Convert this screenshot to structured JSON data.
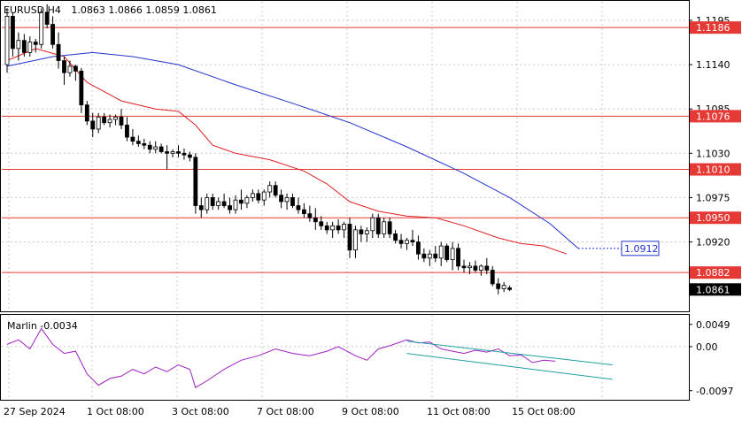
{
  "header": {
    "symbol": "EURUSD,H4",
    "ohlc": "1.0863 1.0866 1.0859 1.0861"
  },
  "indicator": {
    "label": "Marlin -0.0034",
    "ticks": [
      {
        "value": 0.0049,
        "label": "0.0049"
      },
      {
        "value": 0.0,
        "label": "0.00"
      },
      {
        "value": -0.0097,
        "label": "-0.0097"
      }
    ],
    "ylim": [
      -0.0115,
      0.0068
    ]
  },
  "chart_data": {
    "type": "candlestick",
    "ylim": [
      1.0835,
      1.1218
    ],
    "grid": true,
    "price_ticks": [
      {
        "value": 1.1195,
        "label": "1.1195"
      },
      {
        "value": 1.114,
        "label": "1.1140"
      },
      {
        "value": 1.1085,
        "label": "1.1085"
      },
      {
        "value": 1.103,
        "label": "1.1030"
      },
      {
        "value": 1.0975,
        "label": "1.0975"
      },
      {
        "value": 1.092,
        "label": "1.0920"
      }
    ],
    "x_tick_labels": [
      "27 Sep 2024",
      "1 Oct 08:00",
      "3 Oct 08:00",
      "7 Oct 08:00",
      "9 Oct 08:00",
      "11 Oct 08:00",
      "15 Oct 08:00"
    ],
    "levels": [
      {
        "value": 1.1186,
        "label": "1.1186",
        "color": "#e53935"
      },
      {
        "value": 1.1076,
        "label": "1.1076",
        "color": "#e53935"
      },
      {
        "value": 1.101,
        "label": "1.1010",
        "color": "#e53935"
      },
      {
        "value": 1.095,
        "label": "1.0950",
        "color": "#e53935"
      },
      {
        "value": 1.0882,
        "label": "1.0882",
        "color": "#e53935"
      }
    ],
    "current_price": {
      "value": 1.0861,
      "label": "1.0861"
    },
    "ma_label": {
      "value": 1.0912,
      "label": "1.0912",
      "color": "#2233cc"
    },
    "colors": {
      "bull": "#ffffff",
      "bear": "#000000",
      "fast_ma": "#e02020",
      "slow_ma": "#2233cc",
      "osc": "#a020c0",
      "channel": "#20a0a0",
      "level": "#e53935"
    },
    "candles": [
      [
        1.114,
        1.121,
        1.113,
        1.12
      ],
      [
        1.12,
        1.1205,
        1.115,
        1.116
      ],
      [
        1.116,
        1.118,
        1.1145,
        1.117
      ],
      [
        1.117,
        1.1178,
        1.115,
        1.1155
      ],
      [
        1.1155,
        1.1175,
        1.115,
        1.1168
      ],
      [
        1.1168,
        1.1172,
        1.1155,
        1.1165
      ],
      [
        1.1165,
        1.121,
        1.116,
        1.1205
      ],
      [
        1.1205,
        1.1215,
        1.1185,
        1.119
      ],
      [
        1.119,
        1.12,
        1.116,
        1.1165
      ],
      [
        1.1165,
        1.118,
        1.1135,
        1.1145
      ],
      [
        1.1145,
        1.115,
        1.1115,
        1.113
      ],
      [
        1.113,
        1.1145,
        1.1125,
        1.1138
      ],
      [
        1.1138,
        1.114,
        1.112,
        1.1132
      ],
      [
        1.1132,
        1.1136,
        1.108,
        1.109
      ],
      [
        1.109,
        1.1095,
        1.1065,
        1.107
      ],
      [
        1.107,
        1.108,
        1.105,
        1.106
      ],
      [
        1.106,
        1.108,
        1.1055,
        1.1075
      ],
      [
        1.1075,
        1.108,
        1.1065,
        1.1068
      ],
      [
        1.1068,
        1.1078,
        1.1062,
        1.1072
      ],
      [
        1.1072,
        1.1078,
        1.1065,
        1.1075
      ],
      [
        1.1075,
        1.1085,
        1.106,
        1.1065
      ],
      [
        1.1065,
        1.1075,
        1.1045,
        1.105
      ],
      [
        1.105,
        1.106,
        1.104,
        1.1045
      ],
      [
        1.1045,
        1.1052,
        1.1038,
        1.1042
      ],
      [
        1.1042,
        1.1048,
        1.1035,
        1.104
      ],
      [
        1.104,
        1.1045,
        1.103,
        1.1035
      ],
      [
        1.1035,
        1.1045,
        1.103,
        1.1038
      ],
      [
        1.1038,
        1.1042,
        1.103,
        1.1032
      ],
      [
        1.1032,
        1.104,
        1.101,
        1.103
      ],
      [
        1.103,
        1.1035,
        1.1025,
        1.1032
      ],
      [
        1.1032,
        1.104,
        1.1025,
        1.103
      ],
      [
        1.103,
        1.1036,
        1.1022,
        1.1028
      ],
      [
        1.1028,
        1.1032,
        1.102,
        1.1025
      ],
      [
        1.1025,
        1.103,
        1.0955,
        1.0965
      ],
      [
        1.0965,
        1.0975,
        1.095,
        1.096
      ],
      [
        1.096,
        1.098,
        1.0955,
        1.0975
      ],
      [
        1.0975,
        1.098,
        1.096,
        1.0965
      ],
      [
        1.0965,
        1.0975,
        1.096,
        1.097
      ],
      [
        1.097,
        1.098,
        1.0962,
        1.0965
      ],
      [
        1.0965,
        1.0975,
        1.0955,
        1.096
      ],
      [
        1.096,
        1.0978,
        1.0955,
        1.0972
      ],
      [
        1.0972,
        1.0985,
        1.096,
        1.0968
      ],
      [
        1.0968,
        1.0978,
        1.0962,
        1.0975
      ],
      [
        1.0975,
        1.0985,
        1.097,
        1.098
      ],
      [
        1.098,
        1.0985,
        1.0968,
        1.0972
      ],
      [
        1.0972,
        1.0985,
        1.0965,
        1.0982
      ],
      [
        1.0982,
        1.0995,
        1.0975,
        1.099
      ],
      [
        1.099,
        1.0995,
        1.0975,
        1.0978
      ],
      [
        1.0978,
        1.0985,
        1.0962,
        1.097
      ],
      [
        1.097,
        1.098,
        1.096,
        1.0975
      ],
      [
        1.0975,
        1.098,
        1.0962,
        1.0965
      ],
      [
        1.0965,
        1.0975,
        1.0955,
        1.096
      ],
      [
        1.096,
        1.0968,
        1.095,
        1.0955
      ],
      [
        1.0955,
        1.0965,
        1.0945,
        1.095
      ],
      [
        1.095,
        1.0962,
        1.0935,
        1.0945
      ],
      [
        1.0945,
        1.0952,
        1.0935,
        1.094
      ],
      [
        1.094,
        1.0945,
        1.093,
        1.0935
      ],
      [
        1.0935,
        1.0945,
        1.0925,
        1.094
      ],
      [
        1.094,
        1.0948,
        1.093,
        1.0935
      ],
      [
        1.0935,
        1.0945,
        1.0925,
        1.0942
      ],
      [
        1.0942,
        1.095,
        1.09,
        1.091
      ],
      [
        1.091,
        1.094,
        1.09,
        1.0935
      ],
      [
        1.0935,
        1.094,
        1.092,
        1.093
      ],
      [
        1.093,
        1.0938,
        1.092,
        1.0934
      ],
      [
        1.0934,
        1.0955,
        1.0925,
        1.095
      ],
      [
        1.095,
        1.0955,
        1.0925,
        1.093
      ],
      [
        1.093,
        1.095,
        1.0925,
        1.0945
      ],
      [
        1.0945,
        1.095,
        1.0925,
        1.093
      ],
      [
        1.093,
        1.0935,
        1.0918,
        1.0922
      ],
      [
        1.0922,
        1.093,
        1.0912,
        1.0918
      ],
      [
        1.0918,
        1.0925,
        1.091,
        1.0922
      ],
      [
        1.0922,
        1.0935,
        1.0915,
        1.092
      ],
      [
        1.092,
        1.0928,
        1.0898,
        1.0905
      ],
      [
        1.0905,
        1.0912,
        1.0895,
        1.09
      ],
      [
        1.09,
        1.091,
        1.089,
        1.0905
      ],
      [
        1.0905,
        1.0915,
        1.0895,
        1.09
      ],
      [
        1.09,
        1.092,
        1.089,
        1.0915
      ],
      [
        1.0915,
        1.0918,
        1.0895,
        1.0898
      ],
      [
        1.0898,
        1.092,
        1.0885,
        1.0912
      ],
      [
        1.0912,
        1.0918,
        1.0885,
        1.089
      ],
      [
        1.089,
        1.0898,
        1.0882,
        1.0888
      ],
      [
        1.0888,
        1.0895,
        1.088,
        1.089
      ],
      [
        1.089,
        1.0897,
        1.0882,
        1.0885
      ],
      [
        1.0885,
        1.0892,
        1.0878,
        1.089
      ],
      [
        1.089,
        1.09,
        1.088,
        1.0885
      ],
      [
        1.0885,
        1.089,
        1.0865,
        1.0868
      ],
      [
        1.0868,
        1.0875,
        1.0855,
        1.0862
      ],
      [
        1.0862,
        1.087,
        1.0858,
        1.0866
      ],
      [
        1.0863,
        1.0866,
        1.0859,
        1.0861
      ]
    ],
    "fast_ma": [
      [
        0,
        1.1145
      ],
      [
        5,
        1.116
      ],
      [
        10,
        1.115
      ],
      [
        14,
        1.1118
      ],
      [
        20,
        1.1095
      ],
      [
        26,
        1.1085
      ],
      [
        30,
        1.1082
      ],
      [
        33,
        1.1065
      ],
      [
        36,
        1.104
      ],
      [
        40,
        1.103
      ],
      [
        46,
        1.1022
      ],
      [
        52,
        1.1008
      ],
      [
        56,
        1.0992
      ],
      [
        60,
        1.097
      ],
      [
        65,
        1.0958
      ],
      [
        70,
        1.0952
      ],
      [
        75,
        1.095
      ],
      [
        80,
        1.094
      ],
      [
        86,
        1.0925
      ],
      [
        90,
        1.0918
      ],
      [
        94,
        1.0915
      ],
      [
        98,
        1.0905
      ]
    ],
    "slow_ma": [
      [
        0,
        1.1138
      ],
      [
        8,
        1.115
      ],
      [
        15,
        1.1155
      ],
      [
        22,
        1.115
      ],
      [
        30,
        1.114
      ],
      [
        40,
        1.1115
      ],
      [
        50,
        1.1092
      ],
      [
        60,
        1.1068
      ],
      [
        70,
        1.1038
      ],
      [
        80,
        1.1005
      ],
      [
        88,
        1.0975
      ],
      [
        95,
        1.0943
      ],
      [
        100,
        1.0912
      ]
    ],
    "osc": [
      [
        0,
        0.0005
      ],
      [
        2,
        0.0015
      ],
      [
        4,
        -0.0005
      ],
      [
        6,
        0.004
      ],
      [
        8,
        0.0005
      ],
      [
        10,
        -0.0015
      ],
      [
        12,
        -0.001
      ],
      [
        14,
        -0.006
      ],
      [
        16,
        -0.0085
      ],
      [
        18,
        -0.007
      ],
      [
        20,
        -0.0065
      ],
      [
        22,
        -0.005
      ],
      [
        24,
        -0.006
      ],
      [
        26,
        -0.0045
      ],
      [
        28,
        -0.0055
      ],
      [
        30,
        -0.004
      ],
      [
        32,
        -0.005
      ],
      [
        33,
        -0.009
      ],
      [
        35,
        -0.0075
      ],
      [
        38,
        -0.005
      ],
      [
        41,
        -0.003
      ],
      [
        44,
        -0.002
      ],
      [
        47,
        -0.0005
      ],
      [
        50,
        -0.0015
      ],
      [
        53,
        -0.002
      ],
      [
        56,
        -0.001
      ],
      [
        58,
        0.0
      ],
      [
        61,
        -0.002
      ],
      [
        63,
        -0.003
      ],
      [
        65,
        -0.0005
      ],
      [
        67,
        0.0002
      ],
      [
        70,
        0.0015
      ],
      [
        72,
        0.0008
      ],
      [
        74,
        0.001
      ],
      [
        76,
        -0.0005
      ],
      [
        78,
        -0.001
      ],
      [
        80,
        -0.0015
      ],
      [
        82,
        -0.0008
      ],
      [
        84,
        -0.0012
      ],
      [
        86,
        -0.0005
      ],
      [
        88,
        -0.002
      ],
      [
        90,
        -0.0018
      ],
      [
        92,
        -0.0035
      ],
      [
        94,
        -0.003
      ],
      [
        96,
        -0.0032
      ]
    ],
    "channel": [
      [
        [
          70,
          0.0012
        ],
        [
          106,
          -0.004
        ]
      ],
      [
        [
          70,
          -0.0015
        ],
        [
          106,
          -0.0072
        ]
      ]
    ]
  }
}
